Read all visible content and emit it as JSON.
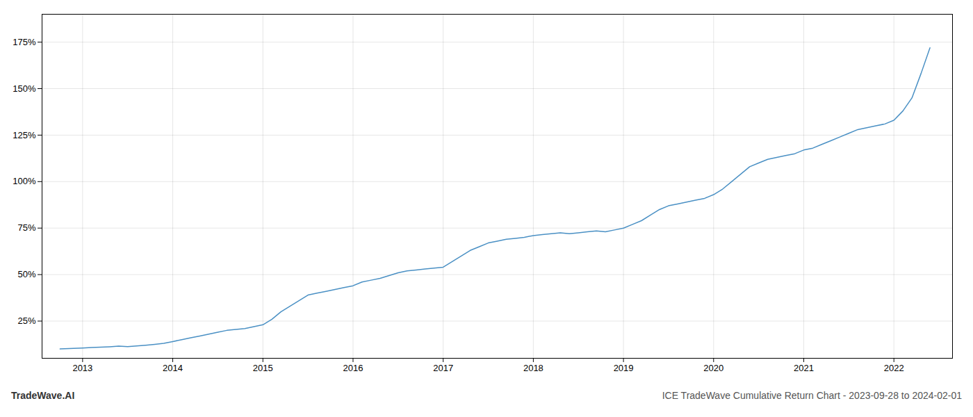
{
  "chart_data": {
    "type": "line",
    "color": "#4a90c4",
    "x": [
      2012.75,
      2013.0,
      2013.1,
      2013.2,
      2013.3,
      2013.4,
      2013.5,
      2013.6,
      2013.7,
      2013.8,
      2013.9,
      2014.0,
      2014.1,
      2014.2,
      2014.3,
      2014.4,
      2014.5,
      2014.6,
      2014.7,
      2014.8,
      2014.9,
      2015.0,
      2015.1,
      2015.2,
      2015.3,
      2015.4,
      2015.5,
      2015.6,
      2015.7,
      2015.8,
      2015.9,
      2016.0,
      2016.1,
      2016.2,
      2016.3,
      2016.4,
      2016.5,
      2016.6,
      2016.7,
      2016.8,
      2016.9,
      2017.0,
      2017.1,
      2017.2,
      2017.3,
      2017.4,
      2017.5,
      2017.6,
      2017.7,
      2017.8,
      2017.9,
      2018.0,
      2018.1,
      2018.2,
      2018.3,
      2018.4,
      2018.5,
      2018.6,
      2018.7,
      2018.8,
      2018.9,
      2019.0,
      2019.1,
      2019.2,
      2019.3,
      2019.4,
      2019.5,
      2019.6,
      2019.7,
      2019.8,
      2019.9,
      2020.0,
      2020.1,
      2020.2,
      2020.3,
      2020.4,
      2020.5,
      2020.6,
      2020.7,
      2020.8,
      2020.9,
      2021.0,
      2021.1,
      2021.2,
      2021.3,
      2021.4,
      2021.5,
      2021.6,
      2021.7,
      2021.8,
      2021.9,
      2022.0,
      2022.1,
      2022.2,
      2022.3,
      2022.4
    ],
    "values": [
      10,
      10.5,
      10.8,
      11,
      11.2,
      11.5,
      11.3,
      11.6,
      12,
      12.5,
      13,
      14,
      15,
      16,
      17,
      18,
      19,
      20,
      20.5,
      21,
      22,
      23,
      26,
      30,
      33,
      36,
      39,
      40,
      41,
      42,
      43,
      44,
      46,
      47,
      48,
      49.5,
      51,
      52,
      52.5,
      53,
      53.5,
      54,
      57,
      60,
      63,
      65,
      67,
      68,
      69,
      69.5,
      70,
      71,
      71.5,
      72,
      72.5,
      72,
      72.5,
      73,
      73.5,
      73,
      74,
      75,
      77,
      79,
      82,
      85,
      87,
      88,
      89,
      90,
      91,
      93,
      96,
      100,
      104,
      108,
      110,
      112,
      113,
      114,
      115,
      117,
      118,
      120,
      122,
      124,
      126,
      128,
      129,
      130,
      131,
      133,
      138,
      145,
      158,
      172
    ],
    "xlim": [
      2012.55,
      2022.65
    ],
    "ylim": [
      5,
      190
    ],
    "xticks": [
      2013,
      2014,
      2015,
      2016,
      2017,
      2018,
      2019,
      2020,
      2021,
      2022
    ],
    "yticks": [
      {
        "value": 25,
        "label": "25%"
      },
      {
        "value": 50,
        "label": "50%"
      },
      {
        "value": 75,
        "label": "75%"
      },
      {
        "value": 100,
        "label": "100%"
      },
      {
        "value": 125,
        "label": "125%"
      },
      {
        "value": 150,
        "label": "150%"
      },
      {
        "value": 175,
        "label": "175%"
      }
    ],
    "grid": true,
    "annotations": [
      "TradeWave.AI",
      "ICE TradeWave Cumulative Return Chart - 2023-09-28 to 2024-02-01"
    ]
  }
}
